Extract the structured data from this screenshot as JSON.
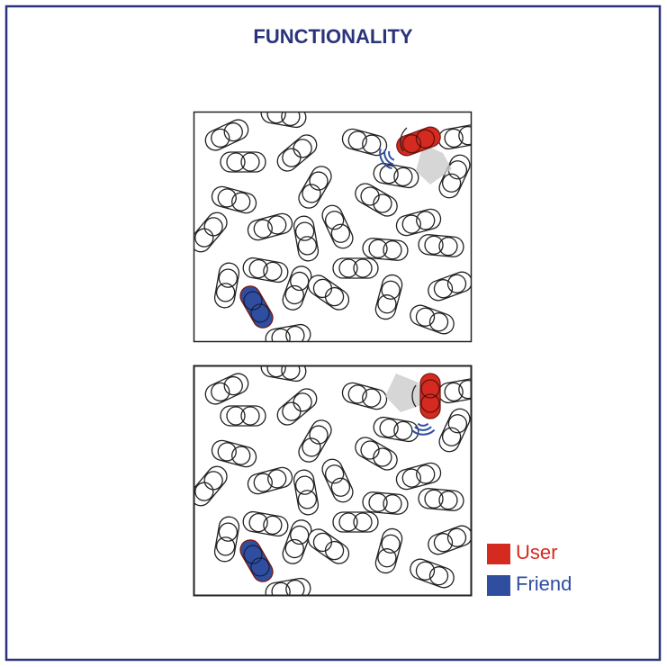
{
  "title": "FUNCTIONALITY",
  "legend": [
    {
      "label": "User",
      "color": "#d42a20"
    },
    {
      "label": "Friend",
      "color": "#2f4ea0"
    }
  ]
}
